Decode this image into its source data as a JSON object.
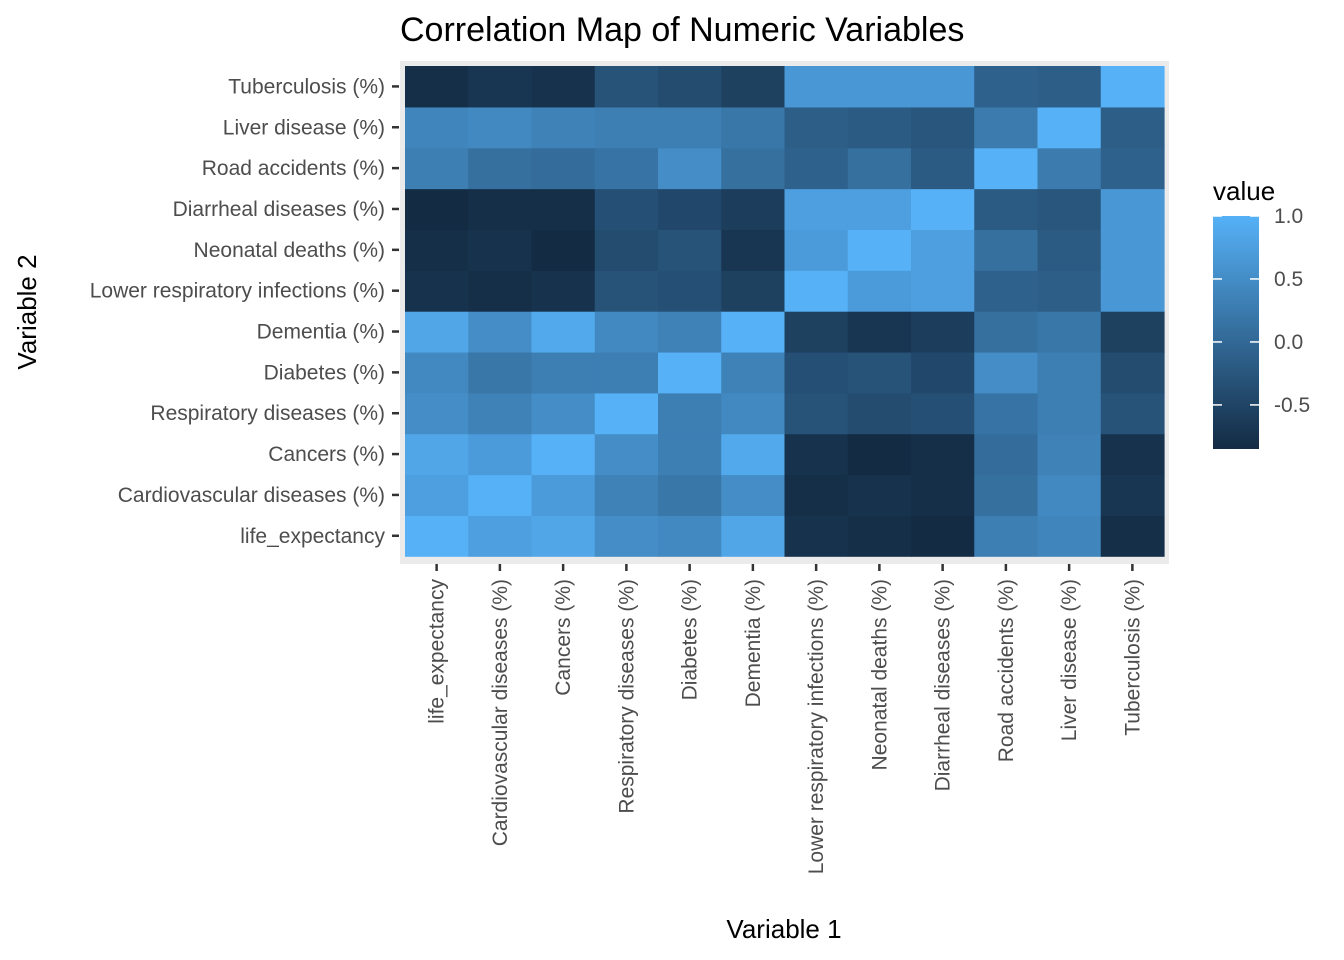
{
  "chart_data": {
    "type": "heatmap",
    "title": "Correlation Map of Numeric Variables",
    "xlabel": "Variable 1",
    "ylabel": "Variable 2",
    "variables": [
      "life_expectancy",
      "Cardiovascular diseases (%)",
      "Cancers (%)",
      "Respiratory diseases (%)",
      "Diabetes (%)",
      "Dementia (%)",
      "Lower respiratory infections (%)",
      "Neonatal deaths (%)",
      "Diarrheal diseases (%)",
      "Road accidents (%)",
      "Liver disease (%)",
      "Tuberculosis (%)"
    ],
    "values": [
      [
        1.0,
        0.75,
        0.85,
        0.5,
        0.45,
        0.85,
        -0.75,
        -0.8,
        -0.85,
        0.3,
        0.4,
        -0.8
      ],
      [
        0.75,
        1.0,
        0.7,
        0.35,
        0.2,
        0.5,
        -0.8,
        -0.75,
        -0.8,
        0.1,
        0.45,
        -0.7
      ],
      [
        0.85,
        0.7,
        1.0,
        0.5,
        0.3,
        0.9,
        -0.75,
        -0.9,
        -0.8,
        0.05,
        0.35,
        -0.75
      ],
      [
        0.5,
        0.35,
        0.5,
        1.0,
        0.3,
        0.45,
        -0.3,
        -0.4,
        -0.35,
        0.15,
        0.3,
        -0.3
      ],
      [
        0.45,
        0.2,
        0.3,
        0.3,
        1.0,
        0.35,
        -0.35,
        -0.3,
        -0.45,
        0.5,
        0.3,
        -0.4
      ],
      [
        0.85,
        0.5,
        0.9,
        0.45,
        0.35,
        1.0,
        -0.55,
        -0.7,
        -0.6,
        0.1,
        0.2,
        -0.55
      ],
      [
        -0.75,
        -0.8,
        -0.75,
        -0.3,
        -0.35,
        -0.55,
        1.0,
        0.7,
        0.75,
        -0.1,
        -0.15,
        0.65
      ],
      [
        -0.8,
        -0.75,
        -0.9,
        -0.4,
        -0.3,
        -0.7,
        0.7,
        1.0,
        0.75,
        0.1,
        -0.2,
        0.65
      ],
      [
        -0.85,
        -0.8,
        -0.8,
        -0.35,
        -0.45,
        -0.6,
        0.75,
        0.75,
        1.0,
        -0.2,
        -0.25,
        0.65
      ],
      [
        0.3,
        0.1,
        0.05,
        0.15,
        0.5,
        0.1,
        -0.1,
        0.1,
        -0.2,
        1.0,
        0.25,
        -0.1
      ],
      [
        0.4,
        0.45,
        0.35,
        0.3,
        0.3,
        0.2,
        -0.15,
        -0.2,
        -0.25,
        0.25,
        1.0,
        -0.15
      ],
      [
        -0.8,
        -0.7,
        -0.75,
        -0.3,
        -0.4,
        -0.55,
        0.65,
        0.65,
        0.65,
        -0.1,
        -0.15,
        1.0
      ]
    ],
    "value_range": [
      -0.85,
      1.0
    ],
    "legend": {
      "title": "value",
      "breaks": [
        1.0,
        0.5,
        0.0,
        -0.5
      ],
      "labels": [
        "1.0",
        "0.5",
        "0.0",
        "-0.5"
      ],
      "placement": "right"
    },
    "colors": {
      "low": "#132B43",
      "high": "#56B1F7",
      "panel_background": "#EBEBEB",
      "tick": "#333333"
    }
  }
}
